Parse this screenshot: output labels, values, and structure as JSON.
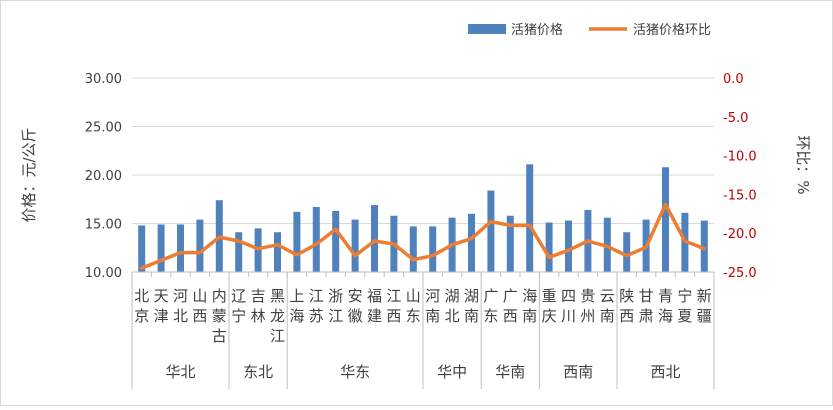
{
  "chart_data": {
    "type": "bar",
    "title": "",
    "legend": {
      "placement": "top-right"
    },
    "ylabel": "价格：元/公斤",
    "y2label": "环比：%",
    "ylim": [
      10,
      30
    ],
    "yticks": [
      "10.00",
      "15.00",
      "20.00",
      "25.00",
      "30.00"
    ],
    "y2lim": [
      -25,
      0
    ],
    "y2ticks": [
      "-25.0",
      "-20.0",
      "-15.0",
      "-10.0",
      "-5.0",
      "0.0"
    ],
    "categories": [
      "北京",
      "天津",
      "河北",
      "山西",
      "内蒙古",
      "辽宁",
      "吉林",
      "黑龙江",
      "上海",
      "江苏",
      "浙江",
      "安徽",
      "福建",
      "江西",
      "山东",
      "河南",
      "湖北",
      "湖南",
      "广东",
      "广西",
      "海南",
      "重庆",
      "四川",
      "贵州",
      "云南",
      "陕西",
      "甘肃",
      "青海",
      "宁夏",
      "新疆"
    ],
    "groups": [
      {
        "name": "华北",
        "count": 5
      },
      {
        "name": "东北",
        "count": 3
      },
      {
        "name": "华东",
        "count": 7
      },
      {
        "name": "华中",
        "count": 3
      },
      {
        "name": "华南",
        "count": 3
      },
      {
        "name": "西南",
        "count": 4
      },
      {
        "name": "西北",
        "count": 5
      }
    ],
    "series": [
      {
        "name": "活猪价格",
        "type": "bar",
        "axis": "left",
        "color": "#4f81bd",
        "values": [
          14.8,
          14.9,
          14.9,
          15.4,
          17.4,
          14.1,
          14.5,
          14.1,
          16.2,
          16.7,
          16.3,
          15.4,
          16.9,
          15.8,
          14.7,
          14.7,
          15.6,
          16.0,
          18.4,
          15.8,
          21.1,
          15.1,
          15.3,
          16.4,
          15.6,
          14.1,
          15.4,
          20.8,
          16.1,
          15.3
        ]
      },
      {
        "name": "活猪价格环比",
        "type": "line",
        "axis": "right",
        "color": "#ed7d31",
        "values": [
          -24.5,
          -23.5,
          -22.5,
          -22.5,
          -20.5,
          -21.0,
          -22.0,
          -21.5,
          -22.8,
          -21.4,
          -19.5,
          -22.9,
          -21.0,
          -21.4,
          -23.4,
          -22.9,
          -21.5,
          -20.7,
          -18.5,
          -19.0,
          -19.0,
          -23.1,
          -22.2,
          -21.0,
          -21.7,
          -22.9,
          -21.8,
          -16.3,
          -21.0,
          -22.0
        ]
      }
    ]
  }
}
